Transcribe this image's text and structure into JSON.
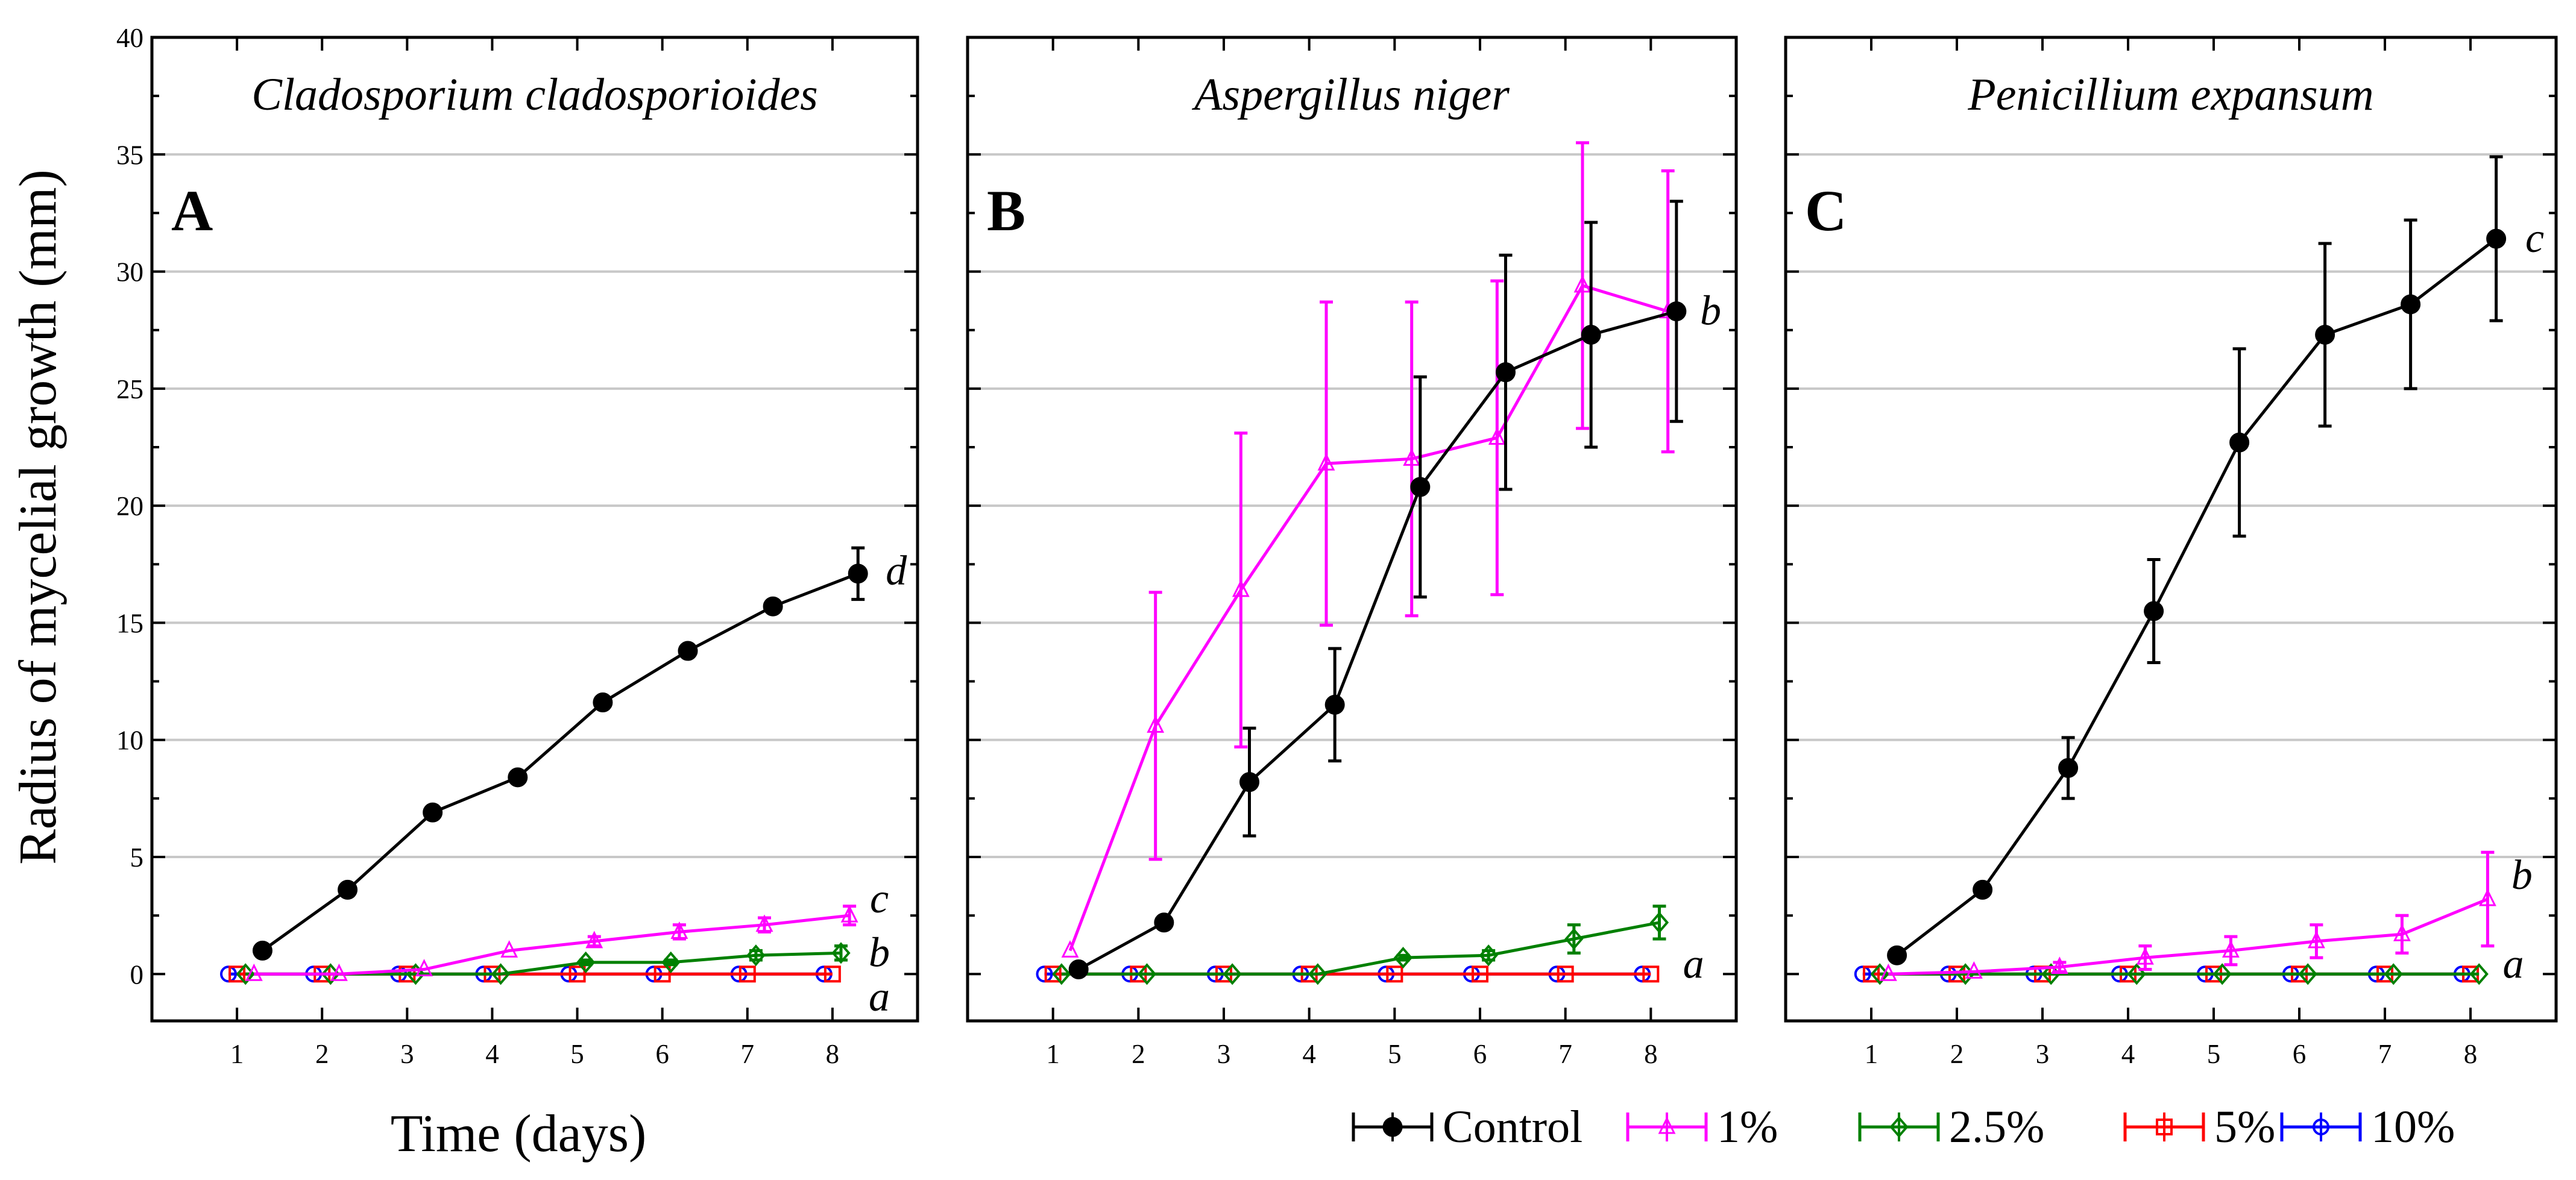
{
  "figure": {
    "ylabel": "Radius of mycelial growth (mm)",
    "xlabel": "Time (days)"
  },
  "legend": [
    {
      "name": "Control",
      "color": "#000000",
      "marker": "filled-circle"
    },
    {
      "name": "1%",
      "color": "#ff00ff",
      "marker": "open-triangle"
    },
    {
      "name": "2.5%",
      "color": "#008000",
      "marker": "open-diamond"
    },
    {
      "name": "5%",
      "color": "#ff0000",
      "marker": "open-square"
    },
    {
      "name": "10%",
      "color": "#0000ff",
      "marker": "open-circle"
    }
  ],
  "chart_data": [
    {
      "type": "line",
      "panel": "A",
      "title": "Cladosporium cladosporioides",
      "xlabel": "Time (days)",
      "ylabel": "Radius of mycelial growth (mm)",
      "x_ticks": [
        1,
        2,
        3,
        4,
        5,
        6,
        7,
        8
      ],
      "y_ticks": [
        0,
        5,
        10,
        15,
        20,
        25,
        30,
        35,
        40
      ],
      "xlim": [
        0,
        9
      ],
      "ylim": [
        -2,
        40
      ],
      "grid": true,
      "series": [
        {
          "name": "Control",
          "x": [
            1.3,
            2.3,
            3.3,
            4.3,
            5.3,
            6.3,
            7.3,
            8.3
          ],
          "values": [
            1.0,
            3.6,
            6.9,
            8.4,
            11.6,
            13.8,
            15.7,
            17.1
          ],
          "errors": [
            0,
            0,
            0,
            0,
            0,
            0,
            0,
            1.1
          ]
        },
        {
          "name": "1%",
          "x": [
            1.2,
            2.2,
            3.2,
            4.2,
            5.2,
            6.2,
            7.2,
            8.2
          ],
          "values": [
            0,
            0,
            0.2,
            1.0,
            1.4,
            1.8,
            2.1,
            2.5
          ],
          "errors": [
            0,
            0,
            0,
            0,
            0.2,
            0.3,
            0.3,
            0.4
          ]
        },
        {
          "name": "2.5%",
          "x": [
            1.1,
            2.1,
            3.1,
            4.1,
            5.1,
            6.1,
            7.1,
            8.1
          ],
          "values": [
            0,
            0,
            0,
            0,
            0.5,
            0.5,
            0.8,
            0.9
          ],
          "errors": [
            0,
            0,
            0,
            0,
            0.1,
            0.1,
            0.2,
            0.3
          ]
        },
        {
          "name": "5%",
          "x": [
            1.0,
            2.0,
            3.0,
            4.0,
            5.0,
            6.0,
            7.0,
            8.0
          ],
          "values": [
            0,
            0,
            0,
            0,
            0,
            0,
            0,
            0
          ],
          "errors": [
            0,
            0,
            0,
            0,
            0,
            0,
            0,
            0
          ]
        },
        {
          "name": "10%",
          "x": [
            0.9,
            1.9,
            2.9,
            3.9,
            4.9,
            5.9,
            6.9,
            7.9
          ],
          "values": [
            0,
            0,
            0,
            0,
            0,
            0,
            0,
            0
          ],
          "errors": [
            0,
            0,
            0,
            0,
            0,
            0,
            0,
            0
          ]
        }
      ],
      "annotations": [
        {
          "text": "d",
          "x": 8.75,
          "y": 17.2
        },
        {
          "text": "c",
          "x": 8.55,
          "y": 3.2
        },
        {
          "text": "b",
          "x": 8.55,
          "y": 0.9
        },
        {
          "text": "a",
          "x": 8.55,
          "y": -1.0
        }
      ]
    },
    {
      "type": "line",
      "panel": "B",
      "title": "Aspergillus niger",
      "xlabel": "Time (days)",
      "ylabel": "Radius of mycelial growth (mm)",
      "x_ticks": [
        1,
        2,
        3,
        4,
        5,
        6,
        7,
        8
      ],
      "y_ticks": [
        0,
        5,
        10,
        15,
        20,
        25,
        30,
        35,
        40
      ],
      "xlim": [
        0,
        9
      ],
      "ylim": [
        -2,
        40
      ],
      "grid": true,
      "series": [
        {
          "name": "Control",
          "x": [
            1.3,
            2.3,
            3.3,
            4.3,
            5.3,
            6.3,
            7.3,
            8.3
          ],
          "values": [
            0.2,
            2.2,
            8.2,
            11.5,
            20.8,
            25.7,
            27.3,
            28.3
          ],
          "errors": [
            0,
            0,
            2.3,
            2.4,
            4.7,
            5.0,
            4.8,
            4.7
          ]
        },
        {
          "name": "1%",
          "x": [
            1.2,
            2.2,
            3.2,
            4.2,
            5.2,
            6.2,
            7.2,
            8.2
          ],
          "values": [
            1.0,
            10.6,
            16.4,
            21.8,
            22.0,
            22.9,
            29.4,
            28.3
          ],
          "errors": [
            0,
            5.7,
            6.7,
            6.9,
            6.7,
            6.7,
            6.1,
            6.0
          ]
        },
        {
          "name": "2.5%",
          "x": [
            1.1,
            2.1,
            3.1,
            4.1,
            5.1,
            6.1,
            7.1,
            8.1
          ],
          "values": [
            0,
            0,
            0,
            0,
            0.7,
            0.8,
            1.5,
            2.2
          ],
          "errors": [
            0,
            0,
            0,
            0,
            0.1,
            0.2,
            0.6,
            0.7
          ]
        },
        {
          "name": "5%",
          "x": [
            1.0,
            2.0,
            3.0,
            4.0,
            5.0,
            6.0,
            7.0,
            8.0
          ],
          "values": [
            0,
            0,
            0,
            0,
            0,
            0,
            0,
            0
          ],
          "errors": [
            0,
            0,
            0,
            0,
            0,
            0,
            0,
            0
          ]
        },
        {
          "name": "10%",
          "x": [
            0.9,
            1.9,
            2.9,
            3.9,
            4.9,
            5.9,
            6.9,
            7.9
          ],
          "values": [
            0,
            0,
            0,
            0,
            0,
            0,
            0,
            0
          ],
          "errors": [
            0,
            0,
            0,
            0,
            0,
            0,
            0,
            0
          ]
        }
      ],
      "annotations": [
        {
          "text": "b",
          "x": 8.7,
          "y": 28.3
        },
        {
          "text": "a",
          "x": 8.5,
          "y": 0.4
        }
      ]
    },
    {
      "type": "line",
      "panel": "C",
      "title": "Penicillium expansum",
      "xlabel": "Time (days)",
      "ylabel": "Radius of mycelial growth (mm)",
      "x_ticks": [
        1,
        2,
        3,
        4,
        5,
        6,
        7,
        8
      ],
      "y_ticks": [
        0,
        5,
        10,
        15,
        20,
        25,
        30,
        35,
        40
      ],
      "xlim": [
        0,
        9
      ],
      "ylim": [
        -2,
        40
      ],
      "grid": true,
      "series": [
        {
          "name": "Control",
          "x": [
            1.3,
            2.3,
            3.3,
            4.3,
            5.3,
            6.3,
            7.3,
            8.3
          ],
          "values": [
            0.8,
            3.6,
            8.8,
            15.5,
            22.7,
            27.3,
            28.6,
            31.4
          ],
          "errors": [
            0,
            0,
            1.3,
            2.2,
            4.0,
            3.9,
            3.6,
            3.5
          ]
        },
        {
          "name": "1%",
          "x": [
            1.2,
            2.2,
            3.2,
            4.2,
            5.2,
            6.2,
            7.2,
            8.2
          ],
          "values": [
            0,
            0.1,
            0.3,
            0.7,
            1.0,
            1.4,
            1.7,
            3.2
          ],
          "errors": [
            0,
            0,
            0.2,
            0.5,
            0.6,
            0.7,
            0.8,
            2.0
          ]
        },
        {
          "name": "2.5%",
          "x": [
            1.1,
            2.1,
            3.1,
            4.1,
            5.1,
            6.1,
            7.1,
            8.1
          ],
          "values": [
            0,
            0,
            0,
            0,
            0,
            0,
            0,
            0
          ],
          "errors": [
            0,
            0,
            0,
            0,
            0,
            0,
            0,
            0
          ]
        },
        {
          "name": "5%",
          "x": [
            1.0,
            2.0,
            3.0,
            4.0,
            5.0,
            6.0,
            7.0,
            8.0
          ],
          "values": [
            0,
            0,
            0,
            0,
            0,
            0,
            0,
            0
          ],
          "errors": [
            0,
            0,
            0,
            0,
            0,
            0,
            0,
            0
          ]
        },
        {
          "name": "10%",
          "x": [
            0.9,
            1.9,
            2.9,
            3.9,
            4.9,
            5.9,
            6.9,
            7.9
          ],
          "values": [
            0,
            0,
            0,
            0,
            0,
            0,
            0,
            0
          ],
          "errors": [
            0,
            0,
            0,
            0,
            0,
            0,
            0,
            0
          ]
        }
      ],
      "annotations": [
        {
          "text": "c",
          "x": 8.75,
          "y": 31.4
        },
        {
          "text": "b",
          "x": 8.6,
          "y": 4.2
        },
        {
          "text": "a",
          "x": 8.5,
          "y": 0.4
        }
      ]
    }
  ]
}
